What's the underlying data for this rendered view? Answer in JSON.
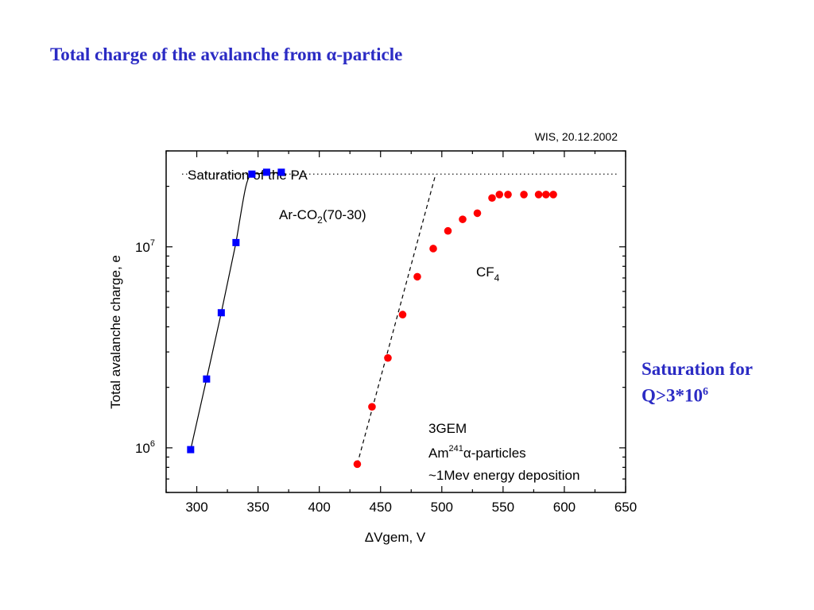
{
  "slide": {
    "title": "Total charge of the avalanche from α-particle",
    "note_line1": "Saturation for",
    "note_line2_base": "Q>3*10",
    "note_line2_exp": "6"
  },
  "chart_data": {
    "type": "scatter",
    "header": "WIS, 20.12.2002",
    "xlabel": "ΔVgem, V",
    "ylabel": "Total avalanche charge, e",
    "xlim": [
      275,
      650
    ],
    "ylim": [
      600000,
      30000000
    ],
    "yscale": "log",
    "xticks": [
      300,
      350,
      400,
      450,
      500,
      550,
      600,
      650
    ],
    "yticks": [
      {
        "value": 1000000,
        "base": "10",
        "exp": "6"
      },
      {
        "value": 10000000,
        "base": "10",
        "exp": "7"
      }
    ],
    "saturation": {
      "value": 23000000,
      "label": "Saturation of the PA"
    },
    "series": [
      {
        "name_base": "Ar-CO",
        "name_sub": "2",
        "name_tail": "(70-30)",
        "color": "#0000ff",
        "marker": "square",
        "points": [
          [
            295,
            980000
          ],
          [
            308,
            2200000
          ],
          [
            320,
            4700000
          ],
          [
            332,
            10500000
          ],
          [
            345,
            23000000
          ],
          [
            357,
            23500000
          ],
          [
            369,
            23500000
          ]
        ]
      },
      {
        "name_base": "CF",
        "name_sub": "4",
        "name_tail": "",
        "color": "#ff0000",
        "marker": "circle",
        "points": [
          [
            431,
            830000
          ],
          [
            443,
            1600000
          ],
          [
            456,
            2800000
          ],
          [
            468,
            4600000
          ],
          [
            480,
            7100000
          ],
          [
            493,
            9800000
          ],
          [
            505,
            12000000
          ],
          [
            517,
            13700000
          ],
          [
            529,
            14700000
          ],
          [
            541,
            17500000
          ],
          [
            547,
            18200000
          ],
          [
            554,
            18200000
          ],
          [
            567,
            18200000
          ],
          [
            579,
            18200000
          ],
          [
            585,
            18200000
          ],
          [
            591,
            18200000
          ]
        ]
      }
    ],
    "annotation": {
      "line1": "3GEM",
      "line2_base": "Am",
      "line2_sup": "241",
      "line2_tail": "α-particles",
      "line3": "~1Mev energy deposition"
    }
  }
}
